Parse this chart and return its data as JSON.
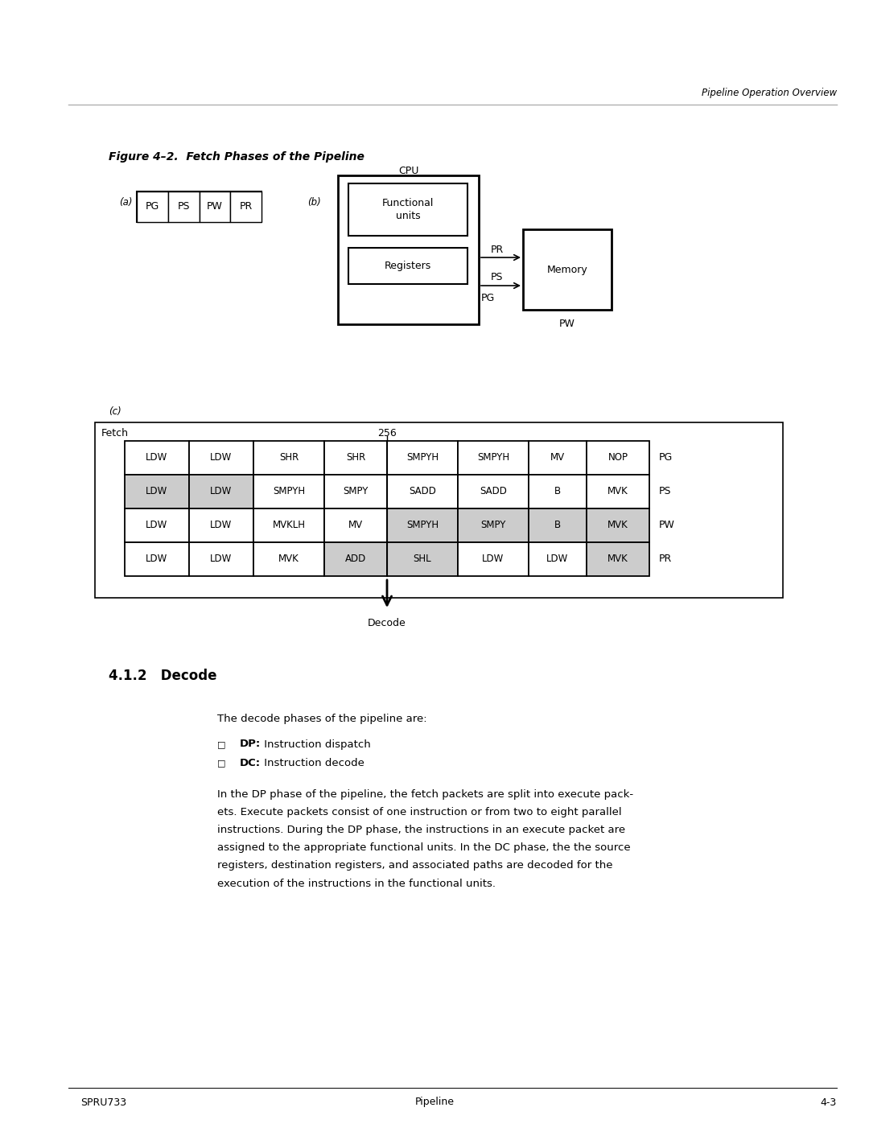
{
  "bg_color": "#ffffff",
  "header_line_color": "#b0b0b0",
  "header_right_text": "Pipeline Operation Overview",
  "figure_caption": "Figure 4–2.  Fetch Phases of the Pipeline",
  "part_a_label": "(a)",
  "part_a_cells": [
    "PG",
    "PS",
    "PW",
    "PR"
  ],
  "part_b_label": "(b)",
  "cpu_label": "CPU",
  "functional_units_label": "Functional\nunits",
  "registers_label": "Registers",
  "memory_label": "Memory",
  "pr_label": "PR",
  "ps_label": "PS",
  "pg_label": "PG",
  "pw_label": "PW",
  "part_c_label": "(c)",
  "fetch_label": "Fetch",
  "num_256_label": "256",
  "decode_label": "Decode",
  "pg_row_label": "PG",
  "ps_row_label": "PS",
  "pw_row_label": "PW",
  "pr_row_label": "PR",
  "table_rows": [
    [
      "LDW",
      "LDW",
      "SHR",
      "SHR",
      "SMPYH",
      "SMPYH",
      "MV",
      "NOP"
    ],
    [
      "LDW",
      "LDW",
      "SMPYH",
      "SMPY",
      "SADD",
      "SADD",
      "B",
      "MVK"
    ],
    [
      "LDW",
      "LDW",
      "MVKLH",
      "MV",
      "SMPYH",
      "SMPY",
      "B",
      "MVK"
    ],
    [
      "LDW",
      "LDW",
      "MVK",
      "ADD",
      "SHL",
      "LDW",
      "LDW",
      "MVK"
    ]
  ],
  "table_row_shading": [
    [
      false,
      false,
      false,
      false,
      false,
      false,
      false,
      false
    ],
    [
      true,
      true,
      false,
      false,
      false,
      false,
      false,
      false
    ],
    [
      false,
      false,
      false,
      false,
      true,
      true,
      true,
      true
    ],
    [
      false,
      false,
      false,
      true,
      true,
      false,
      false,
      true
    ]
  ],
  "section_title": "4.1.2   Decode",
  "body_text_intro": "The decode phases of the pipeline are:",
  "bullet_dp_bold": "DP:",
  "bullet_dp_rest": " Instruction dispatch",
  "bullet_dc_bold": "DC:",
  "bullet_dc_rest": " Instruction decode",
  "body_para_lines": [
    "In the DP phase of the pipeline, the fetch packets are split into execute pack-",
    "ets. Execute packets consist of one instruction or from two to eight parallel",
    "instructions. During the DP phase, the instructions in an execute packet are",
    "assigned to the appropriate functional units. In the DC phase, the the source",
    "registers, destination registers, and associated paths are decoded for the",
    "execution of the instructions in the functional units."
  ],
  "footer_left": "SPRU733",
  "footer_center": "Pipeline",
  "footer_right": "4-3"
}
